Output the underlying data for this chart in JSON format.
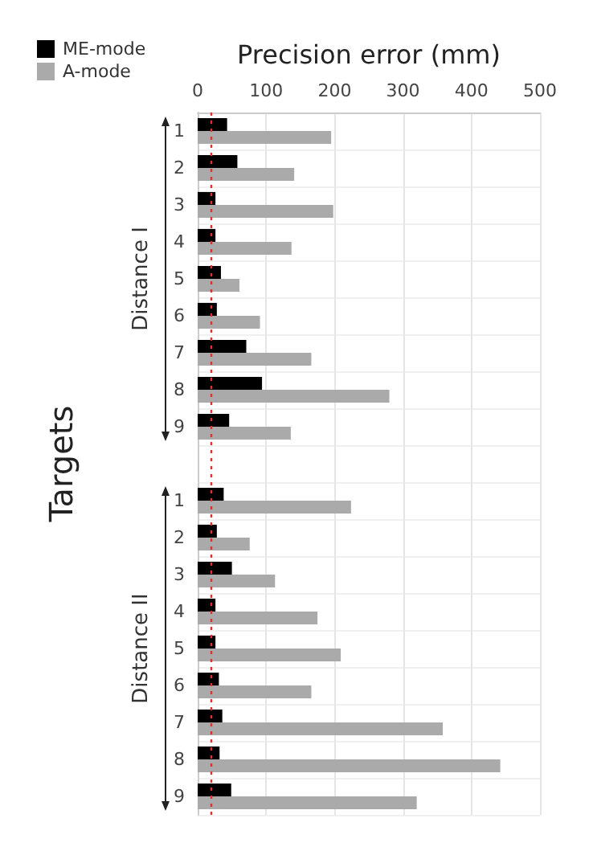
{
  "chart_data": {
    "type": "bar",
    "orientation": "horizontal",
    "xlabel": "Precision error (mm)",
    "ylabel": "Targets",
    "categories": [
      "1",
      "2",
      "3",
      "4",
      "5",
      "6",
      "7",
      "8",
      "9",
      null,
      "1",
      "2",
      "3",
      "4",
      "5",
      "6",
      "7",
      "8",
      "9"
    ],
    "series": [
      {
        "name": "ME-mode",
        "color": "#000000",
        "values": [
          43,
          58,
          26,
          26,
          34,
          28,
          71,
          94,
          46,
          null,
          38,
          28,
          50,
          26,
          26,
          31,
          36,
          32,
          49
        ]
      },
      {
        "name": "A-mode",
        "color": "#aaaaaa",
        "values": [
          195,
          141,
          198,
          137,
          61,
          91,
          166,
          280,
          136,
          null,
          224,
          76,
          113,
          175,
          209,
          166,
          358,
          442,
          320
        ]
      }
    ],
    "xlim": [
      0,
      500
    ],
    "xticks": [
      0,
      100,
      200,
      300,
      400,
      500
    ],
    "ref_lines": [
      {
        "axis": "x",
        "value": 20,
        "color": "#e03030",
        "line_style": "dotted"
      }
    ],
    "annotations": [
      "Distance I",
      "Distance II"
    ],
    "grid": true,
    "legend": "top left"
  }
}
